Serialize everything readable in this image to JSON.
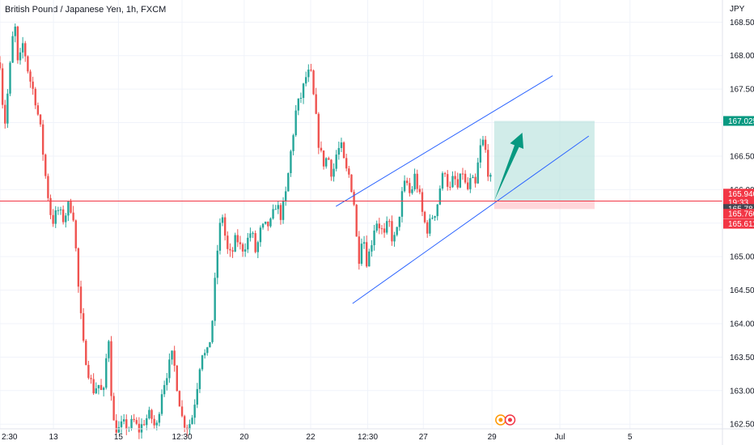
{
  "header": {
    "title": "British Pound / Japanese Yen, 1h, FXCM",
    "currency": "JPY"
  },
  "colors": {
    "up": "#26a69a",
    "down": "#ef5350",
    "channel": "#2962ff",
    "target_zone": "#b2dfdb",
    "stop_zone": "#ffcdd2",
    "arrow": "#089981",
    "price_line": "#f23645",
    "grid": "#f0f3fa"
  },
  "chart_data": {
    "type": "candlestick",
    "title": "British Pound / Japanese Yen, 1h, FXCM",
    "ylabel": "JPY",
    "ylim": [
      162.43,
      168.83
    ],
    "grid": true,
    "y_ticks": [
      "168.500",
      "168.000",
      "167.500",
      "167.000",
      "166.500",
      "166.000",
      "165.500",
      "165.000",
      "164.500",
      "164.000",
      "163.500",
      "163.000",
      "162.500"
    ],
    "x_ticks": [
      "2:30",
      "13",
      "15",
      "12:30",
      "20",
      "22",
      "12:30",
      "27",
      "29",
      "Jul",
      "5"
    ],
    "x_tick_positions": [
      0.0,
      7.4,
      16.4,
      25.2,
      33.8,
      43.0,
      50.9,
      58.6,
      68.1,
      77.5,
      87.2
    ],
    "x_range": [
      0,
      100
    ],
    "last_index": 68.1,
    "price_points": [
      [
        0,
        167.9
      ],
      [
        0.6,
        166.9
      ],
      [
        1.2,
        167.6
      ],
      [
        2.0,
        168.55
      ],
      [
        2.5,
        167.8
      ],
      [
        3.2,
        168.2
      ],
      [
        4.0,
        167.7
      ],
      [
        4.8,
        167.4
      ],
      [
        5.6,
        166.9
      ],
      [
        6.4,
        166.1
      ],
      [
        7.2,
        165.5
      ],
      [
        8.0,
        165.7
      ],
      [
        8.8,
        165.55
      ],
      [
        9.6,
        165.8
      ],
      [
        10.2,
        165.6
      ],
      [
        10.8,
        164.6
      ],
      [
        11.5,
        163.7
      ],
      [
        12.2,
        163.3
      ],
      [
        12.9,
        163.0
      ],
      [
        13.6,
        163.1
      ],
      [
        14.3,
        162.9
      ],
      [
        15.0,
        163.9
      ],
      [
        15.6,
        162.55
      ],
      [
        16.3,
        162.4
      ],
      [
        17.0,
        162.5
      ],
      [
        17.8,
        162.45
      ],
      [
        18.5,
        162.55
      ],
      [
        19.2,
        162.4
      ],
      [
        20.0,
        162.55
      ],
      [
        20.8,
        162.65
      ],
      [
        21.6,
        162.4
      ],
      [
        22.4,
        163.0
      ],
      [
        23.2,
        163.3
      ],
      [
        23.9,
        163.55
      ],
      [
        24.6,
        163.0
      ],
      [
        25.2,
        162.6
      ],
      [
        25.8,
        162.45
      ],
      [
        26.5,
        162.55
      ],
      [
        27.2,
        163.0
      ],
      [
        27.9,
        163.6
      ],
      [
        28.6,
        163.5
      ],
      [
        29.3,
        163.9
      ],
      [
        30.0,
        165.0
      ],
      [
        30.7,
        165.7
      ],
      [
        31.4,
        165.1
      ],
      [
        32.0,
        165.0
      ],
      [
        32.7,
        165.3
      ],
      [
        33.4,
        165.1
      ],
      [
        34.1,
        165.2
      ],
      [
        34.8,
        165.4
      ],
      [
        35.4,
        165.05
      ],
      [
        36.1,
        165.4
      ],
      [
        36.8,
        165.45
      ],
      [
        37.5,
        165.5
      ],
      [
        38.2,
        165.8
      ],
      [
        38.9,
        165.6
      ],
      [
        39.6,
        165.95
      ],
      [
        40.3,
        166.6
      ],
      [
        41.0,
        167.2
      ],
      [
        41.7,
        167.4
      ],
      [
        42.4,
        167.7
      ],
      [
        43.0,
        167.75
      ],
      [
        43.6,
        167.2
      ],
      [
        44.2,
        166.6
      ],
      [
        44.8,
        166.4
      ],
      [
        45.4,
        166.5
      ],
      [
        46.0,
        166.2
      ],
      [
        46.6,
        166.55
      ],
      [
        47.2,
        166.65
      ],
      [
        47.8,
        166.3
      ],
      [
        48.4,
        166.2
      ],
      [
        49.0,
        165.8
      ],
      [
        49.6,
        164.9
      ],
      [
        50.2,
        165.4
      ],
      [
        50.8,
        164.9
      ],
      [
        51.4,
        165.2
      ],
      [
        52.0,
        165.55
      ],
      [
        52.6,
        165.45
      ],
      [
        53.2,
        165.3
      ],
      [
        53.8,
        165.55
      ],
      [
        54.4,
        165.2
      ],
      [
        55.0,
        165.4
      ],
      [
        55.6,
        165.9
      ],
      [
        56.2,
        166.15
      ],
      [
        56.8,
        165.9
      ],
      [
        57.4,
        166.2
      ],
      [
        58.0,
        165.95
      ],
      [
        58.6,
        165.55
      ],
      [
        59.2,
        165.4
      ],
      [
        59.8,
        165.6
      ],
      [
        60.4,
        165.7
      ],
      [
        61.0,
        166.1
      ],
      [
        61.6,
        166.3
      ],
      [
        62.2,
        165.95
      ],
      [
        62.8,
        166.2
      ],
      [
        63.4,
        166.0
      ],
      [
        64.0,
        166.3
      ],
      [
        64.6,
        165.95
      ],
      [
        65.2,
        166.15
      ],
      [
        65.8,
        166.05
      ],
      [
        66.4,
        166.6
      ],
      [
        67.0,
        166.75
      ],
      [
        67.5,
        166.3
      ],
      [
        68.1,
        166.05
      ]
    ],
    "annotations": {
      "channel_upper": [
        [
          46.5,
          165.75
        ],
        [
          76.5,
          167.7
        ]
      ],
      "channel_lower": [
        [
          48.8,
          164.3
        ],
        [
          81.5,
          166.8
        ]
      ],
      "target_zone": {
        "x": [
          68.4,
          82.3
        ],
        "y": [
          165.83,
          167.025
        ]
      },
      "stop_zone": {
        "x": [
          68.4,
          82.3
        ],
        "y": [
          165.71,
          165.83
        ]
      },
      "arrow": [
        [
          68.4,
          165.83
        ],
        [
          72.3,
          166.85
        ]
      ],
      "event_markers_x": [
        69.3,
        70.6
      ]
    },
    "price_tags": [
      {
        "label": "167.025",
        "value": 167.025,
        "color": "#089981"
      },
      {
        "label": "165.940",
        "value": 165.94,
        "color": "#f23645",
        "countdown": "19:33"
      },
      {
        "label": "165.784",
        "value": 165.784,
        "color": "#434651"
      },
      {
        "label": "165.760",
        "value": 165.76,
        "color": "#f23645"
      },
      {
        "label": "165.611",
        "value": 165.611,
        "color": "#f23645"
      }
    ],
    "current_price_line": 165.83
  }
}
